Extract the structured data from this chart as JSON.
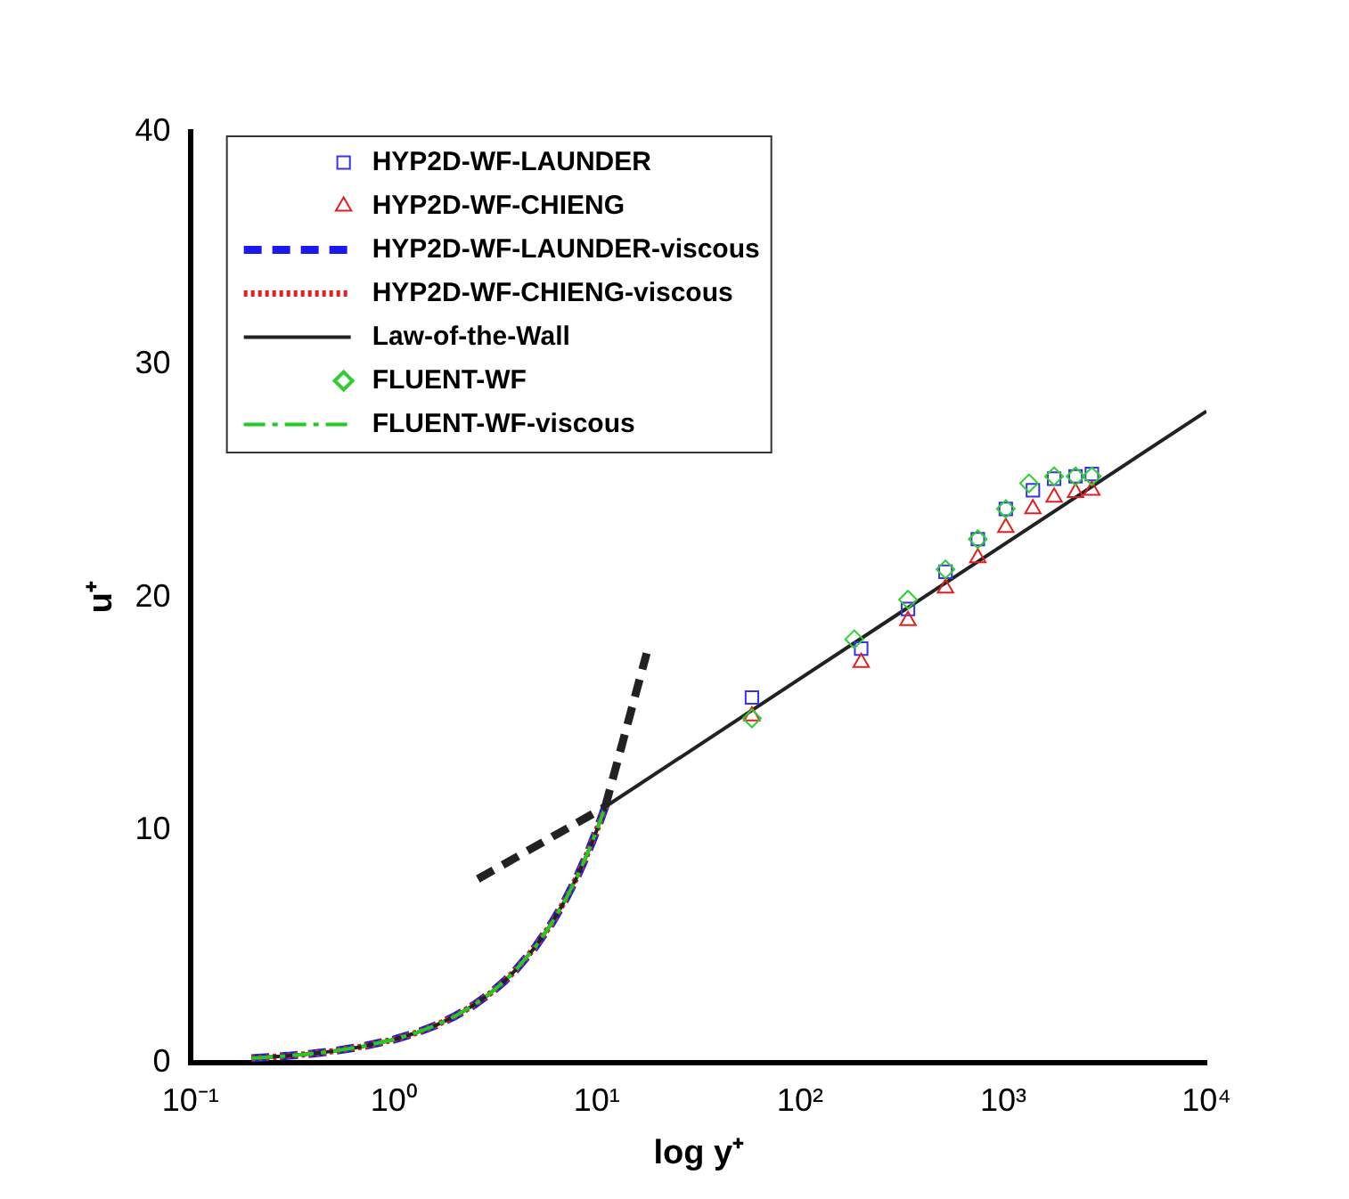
{
  "chart_data": {
    "type": "scatter",
    "xlabel": "log y⁺",
    "ylabel": "u⁺",
    "log": "x",
    "xlim": [
      0.1,
      10000
    ],
    "ylim": [
      0,
      40
    ],
    "xticks": [
      {
        "value": 0.1,
        "label": "10⁻¹"
      },
      {
        "value": 1,
        "label": "10⁰"
      },
      {
        "value": 10,
        "label": "10¹"
      },
      {
        "value": 100,
        "label": "10²"
      },
      {
        "value": 1000,
        "label": "10³"
      },
      {
        "value": 10000,
        "label": "10⁴"
      }
    ],
    "yticks": [
      0,
      10,
      20,
      30,
      40
    ],
    "grid": false,
    "legend": "top left",
    "series": [
      {
        "name": "HYP2D-WF-LAUNDER",
        "marker": "square",
        "color": "#3333ee",
        "x": [
          58,
          200,
          340,
          520,
          750,
          1030,
          1400,
          1780,
          2270,
          2730
        ],
        "values": [
          15.7,
          17.8,
          19.5,
          21.1,
          22.5,
          23.8,
          24.6,
          25.1,
          25.2,
          25.3
        ]
      },
      {
        "name": "HYP2D-WF-CHIENG",
        "marker": "triangle",
        "color": "#e02020",
        "x": [
          58,
          200,
          340,
          520,
          750,
          1030,
          1400,
          1780,
          2270,
          2730
        ],
        "values": [
          14.9,
          17.2,
          19.0,
          20.4,
          21.7,
          23.0,
          23.8,
          24.3,
          24.5,
          24.6
        ]
      },
      {
        "name": "HYP2D-WF-LAUNDER-viscous",
        "type": "line",
        "line_style": "dashed",
        "color": "#1a1aee",
        "x": [
          0.2,
          0.3,
          0.4,
          0.5,
          0.7,
          1,
          1.3,
          1.6,
          2,
          2.5,
          3,
          3.5,
          4,
          5,
          6,
          7,
          8,
          9,
          10,
          11
        ],
        "values": [
          0.2,
          0.3,
          0.4,
          0.5,
          0.7,
          1,
          1.3,
          1.6,
          2,
          2.5,
          3,
          3.5,
          4,
          5,
          6,
          7,
          8,
          9,
          10,
          11
        ]
      },
      {
        "name": "HYP2D-WF-CHIENG-viscous",
        "type": "line",
        "line_style": "dotted",
        "color": "#e02020",
        "x": [
          0.2,
          0.3,
          0.4,
          0.5,
          0.7,
          1,
          1.3,
          1.6,
          2,
          2.5,
          3,
          3.5,
          4,
          5,
          6,
          7,
          8,
          9,
          10,
          11
        ],
        "values": [
          0.2,
          0.3,
          0.4,
          0.5,
          0.7,
          1,
          1.3,
          1.6,
          2,
          2.5,
          3,
          3.5,
          4,
          5,
          6,
          7,
          8,
          9,
          10,
          11
        ]
      },
      {
        "name": "Law-of-the-Wall",
        "type": "line",
        "line_style": "solid",
        "color": "#222222",
        "x": [
          0.2,
          0.3,
          0.4,
          0.5,
          0.7,
          1,
          1.3,
          1.6,
          2,
          2.5,
          3,
          3.5,
          4,
          5,
          6,
          7,
          8,
          9,
          10,
          11,
          10000
        ],
        "values": [
          0.2,
          0.3,
          0.4,
          0.5,
          0.7,
          1,
          1.3,
          1.6,
          2,
          2.5,
          3,
          3.5,
          4,
          5,
          6,
          7,
          8,
          9,
          10,
          11,
          28
        ]
      },
      {
        "name": "FLUENT-WF",
        "marker": "diamond",
        "color": "#33cc33",
        "x": [
          58,
          185,
          340,
          520,
          750,
          1030,
          1340,
          1780,
          2270,
          2730
        ],
        "values": [
          14.8,
          18.2,
          19.9,
          21.2,
          22.5,
          23.8,
          24.9,
          25.2,
          25.2,
          25.2
        ]
      },
      {
        "name": "FLUENT-WF-viscous",
        "type": "line",
        "line_style": "dashdot",
        "color": "#22cc22",
        "x": [
          0.2,
          0.3,
          0.4,
          0.5,
          0.7,
          1,
          1.3,
          1.6,
          2,
          2.5,
          3,
          3.5,
          4,
          5,
          6,
          7,
          8,
          9,
          10,
          11
        ],
        "values": [
          0.2,
          0.3,
          0.4,
          0.5,
          0.7,
          1,
          1.3,
          1.6,
          2,
          2.5,
          3,
          3.5,
          4,
          5,
          6,
          7,
          8,
          9,
          10,
          11
        ]
      },
      {
        "type": "line",
        "line_style": "dashed",
        "color": "#222222",
        "x": [
          2.6,
          11
        ],
        "values": [
          7.9,
          11
        ]
      },
      {
        "type": "line",
        "line_style": "dashed",
        "color": "#222222",
        "x": [
          11,
          17.6
        ],
        "values": [
          11,
          17.6
        ]
      }
    ]
  }
}
